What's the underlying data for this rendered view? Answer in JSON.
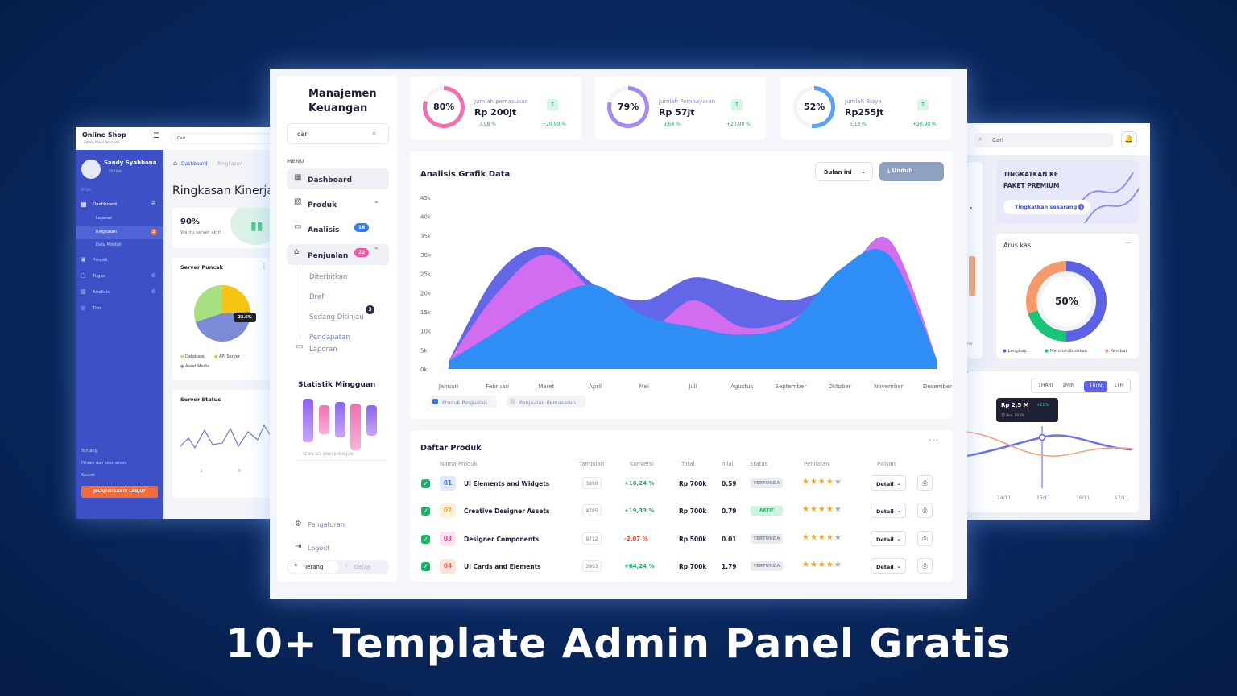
{
  "left": {
    "brand": "Online Shop",
    "brand_sub": "Admin Panel Template",
    "search_placeholder": "Cari",
    "user_name": "Sandy Syahbana",
    "user_status": "Online",
    "section_label": "FITUR",
    "nav": [
      "Dashboard",
      "Laporan",
      "Ringkasan",
      "Data Mentah",
      "Proyek",
      "Tugas",
      "Analisis",
      "Tim"
    ],
    "nav_badge": "2",
    "footer_links": [
      "Tentang",
      "Privasi dan keamanan",
      "Kontak"
    ],
    "cta": "JELAJAHI LEBIH LANJUT",
    "breadcrumb": [
      "Dashboard",
      "Ringkasan"
    ],
    "page_title": "Ringkasan Kinerja",
    "stat_value": "90%",
    "stat_label": "Waktu server aktif",
    "server_peak_title": "Server Puncak",
    "pie_label": "23.6%",
    "pie_legend": [
      "Database",
      "API Server",
      "Asset Media"
    ],
    "server_status_title": "Server Status",
    "status_ticks": [
      "3",
      "6"
    ]
  },
  "center": {
    "title": "Manajemen Keuangan",
    "search_value": "cari",
    "menu_label": "MENU",
    "nav": {
      "dashboard": "Dashboard",
      "produk": "Produk",
      "analisis": "Analisis",
      "analisis_badge": "16",
      "penjualan": "Penjualan",
      "penjualan_badge": "22",
      "sub": [
        "Diterbitkan",
        "Draf",
        "Sedang Ditinjau",
        "Pendapatan"
      ],
      "sub_badge": "3",
      "laporan": "Laporan"
    },
    "weekly_title": "Statistik Mingguan",
    "weekly_days": "SENIN SEL RABU KAMIS JUM",
    "settings": "Pengaturan",
    "logout": "Logout",
    "theme_light": "Terang",
    "theme_dark": "Gelap",
    "kpis": [
      {
        "pct": "79%",
        "label": "Jumlah Pembayaran",
        "value": "Rp 57jt",
        "sub": "9,64 %",
        "change": "+20,90 %",
        "color": "#a488f5"
      },
      {
        "pct": "80%",
        "label": "Jumlah pemasukan",
        "value": "Rp 200jt",
        "sub": "3,98 %",
        "change": "+20,90 %",
        "color": "#f26fb0"
      },
      {
        "pct": "52%",
        "label": "Jumlah Biaya",
        "value": "Rp255jt",
        "sub": "5,13 %",
        "change": "+20,90 %",
        "color": "#5aa0f5"
      }
    ],
    "chart_title": "Analisis Grafik Data",
    "filter": "Bulan ini",
    "download": "Unduh",
    "table_title": "Daftar Produk",
    "table_headers": [
      "Nama Produk",
      "Tampilan",
      "Konversi",
      "Total",
      "nilai",
      "Status",
      "Penilaian",
      "Pilihan"
    ],
    "rows": [
      {
        "no": "01",
        "name": "UI Elements and Widgets",
        "views": "3890",
        "conv": "+16,24 %",
        "total": "Rp 700k",
        "nilai": "0.59",
        "status": "TERTUNDA",
        "detail": "Detail"
      },
      {
        "no": "02",
        "name": "Creative Designer Assets",
        "views": "4785",
        "conv": "+19,33 %",
        "total": "Rp 700k",
        "nilai": "0.79",
        "status": "AKTIF",
        "detail": "Detail"
      },
      {
        "no": "03",
        "name": "Designer Components",
        "views": "9712",
        "conv": "-2,07 %",
        "total": "Rp 500k",
        "nilai": "0.01",
        "status": "TERTUNDA",
        "detail": "Detail"
      },
      {
        "no": "04",
        "name": "UI Cards and Elements",
        "views": "3993",
        "conv": "+64,24 %",
        "total": "Rp 700k",
        "nilai": "1.79",
        "status": "TERTUNDA",
        "detail": "Detail"
      }
    ]
  },
  "chart_data": {
    "type": "area",
    "title": "Analisis Grafik Data",
    "categories": [
      "Januari",
      "Februari",
      "Maret",
      "April",
      "Mei",
      "Juli",
      "Agustus",
      "September",
      "Oktober",
      "November",
      "Desember"
    ],
    "ylim": [
      0,
      45000
    ],
    "yticks": [
      "45k",
      "40k",
      "35k",
      "30k",
      "25k",
      "20k",
      "15k",
      "10k",
      "5k",
      "0k"
    ],
    "legend": [
      "Produk Penjualan",
      "Penjualan Pemasaran"
    ],
    "series": [
      {
        "name": "Penjualan Pemasaran",
        "values": [
          2000,
          25000,
          32000,
          22000,
          18000,
          24000,
          21000,
          18000,
          23000,
          34000,
          2000
        ],
        "color": "#5b5ee6"
      },
      {
        "name": "Produk Penjualan",
        "values": [
          2000,
          20000,
          30000,
          20000,
          10000,
          18000,
          11000,
          13000,
          22000,
          34000,
          2000
        ],
        "color": "#d86ef0"
      },
      {
        "name": "",
        "values": [
          2000,
          10000,
          18000,
          22000,
          14000,
          11000,
          9000,
          12000,
          26000,
          30000,
          2000
        ],
        "color": "#2f8ef5"
      }
    ]
  },
  "right": {
    "search_placeholder": "Cari",
    "promo": "TINGKATKAN KE PAKET PREMIUM",
    "promo_button": "Tingkatkan sekarang",
    "cash_title": "Arus kas",
    "cash_pct": "50%",
    "cash_legend": [
      "Lengkap",
      "Mendistribusikan",
      "Kembali"
    ],
    "tabs": [
      "1HARI",
      "1MIN",
      "1BLN",
      "1TH"
    ],
    "tooltip_value": "Rp 2,5 M",
    "tooltip_change": "+11%",
    "tooltip_date": "15 Nov, 09:30",
    "xticks": [
      "14/11",
      "15/11",
      "16/11",
      "17/11"
    ],
    "side_fragments": [
      "na",
      "ual"
    ]
  },
  "headline": "10+ Template Admin Panel Gratis"
}
